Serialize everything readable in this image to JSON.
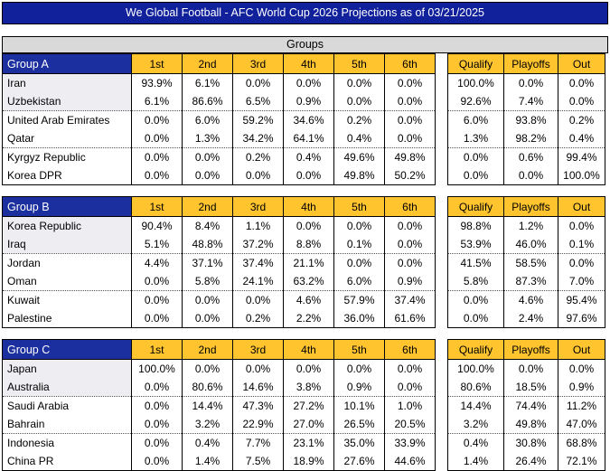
{
  "title": "We Global Football - AFC World Cup 2026 Projections as of 03/21/2025",
  "section_label": "Groups",
  "colors": {
    "title_bar_blue": "#11209B",
    "group_header_blue": "#1B2F9E",
    "header_gold": "#FFC42E",
    "band_gray": "#D9D9D9",
    "top2_shade": "#EDEDF2"
  },
  "chart_data": {
    "type": "table",
    "title": "We Global Football - AFC World Cup 2026 Projections as of 03/21/2025",
    "section_label": "Groups",
    "position_headers": [
      "1st",
      "2nd",
      "3rd",
      "4th",
      "5th",
      "6th"
    ],
    "outcome_headers": [
      "Qualify",
      "Playoffs",
      "Out"
    ],
    "groups": [
      {
        "name": "Group A",
        "teams": [
          {
            "team": "Iran",
            "positions": [
              "93.9%",
              "6.1%",
              "0.0%",
              "0.0%",
              "0.0%",
              "0.0%"
            ],
            "outcomes": [
              "100.0%",
              "0.0%",
              "0.0%"
            ]
          },
          {
            "team": "Uzbekistan",
            "positions": [
              "6.1%",
              "86.6%",
              "6.5%",
              "0.9%",
              "0.0%",
              "0.0%"
            ],
            "outcomes": [
              "92.6%",
              "7.4%",
              "0.0%"
            ]
          },
          {
            "team": "United Arab Emirates",
            "positions": [
              "0.0%",
              "6.0%",
              "59.2%",
              "34.6%",
              "0.2%",
              "0.0%"
            ],
            "outcomes": [
              "6.0%",
              "93.8%",
              "0.2%"
            ]
          },
          {
            "team": "Qatar",
            "positions": [
              "0.0%",
              "1.3%",
              "34.2%",
              "64.1%",
              "0.4%",
              "0.0%"
            ],
            "outcomes": [
              "1.3%",
              "98.2%",
              "0.4%"
            ]
          },
          {
            "team": "Kyrgyz Republic",
            "positions": [
              "0.0%",
              "0.0%",
              "0.2%",
              "0.4%",
              "49.6%",
              "49.8%"
            ],
            "outcomes": [
              "0.0%",
              "0.6%",
              "99.4%"
            ]
          },
          {
            "team": "Korea DPR",
            "positions": [
              "0.0%",
              "0.0%",
              "0.0%",
              "0.0%",
              "49.8%",
              "50.2%"
            ],
            "outcomes": [
              "0.0%",
              "0.0%",
              "100.0%"
            ]
          }
        ]
      },
      {
        "name": "Group B",
        "teams": [
          {
            "team": "Korea Republic",
            "positions": [
              "90.4%",
              "8.4%",
              "1.1%",
              "0.0%",
              "0.0%",
              "0.0%"
            ],
            "outcomes": [
              "98.8%",
              "1.2%",
              "0.0%"
            ]
          },
          {
            "team": "Iraq",
            "positions": [
              "5.1%",
              "48.8%",
              "37.2%",
              "8.8%",
              "0.1%",
              "0.0%"
            ],
            "outcomes": [
              "53.9%",
              "46.0%",
              "0.1%"
            ]
          },
          {
            "team": "Jordan",
            "positions": [
              "4.4%",
              "37.1%",
              "37.4%",
              "21.1%",
              "0.0%",
              "0.0%"
            ],
            "outcomes": [
              "41.5%",
              "58.5%",
              "0.0%"
            ]
          },
          {
            "team": "Oman",
            "positions": [
              "0.0%",
              "5.8%",
              "24.1%",
              "63.2%",
              "6.0%",
              "0.9%"
            ],
            "outcomes": [
              "5.8%",
              "87.3%",
              "7.0%"
            ]
          },
          {
            "team": "Kuwait",
            "positions": [
              "0.0%",
              "0.0%",
              "0.0%",
              "4.6%",
              "57.9%",
              "37.4%"
            ],
            "outcomes": [
              "0.0%",
              "4.6%",
              "95.4%"
            ]
          },
          {
            "team": "Palestine",
            "positions": [
              "0.0%",
              "0.0%",
              "0.2%",
              "2.2%",
              "36.0%",
              "61.6%"
            ],
            "outcomes": [
              "0.0%",
              "2.4%",
              "97.6%"
            ]
          }
        ]
      },
      {
        "name": "Group C",
        "teams": [
          {
            "team": "Japan",
            "positions": [
              "100.0%",
              "0.0%",
              "0.0%",
              "0.0%",
              "0.0%",
              "0.0%"
            ],
            "outcomes": [
              "100.0%",
              "0.0%",
              "0.0%"
            ]
          },
          {
            "team": "Australia",
            "positions": [
              "0.0%",
              "80.6%",
              "14.6%",
              "3.8%",
              "0.9%",
              "0.0%"
            ],
            "outcomes": [
              "80.6%",
              "18.5%",
              "0.9%"
            ]
          },
          {
            "team": "Saudi Arabia",
            "positions": [
              "0.0%",
              "14.4%",
              "47.3%",
              "27.2%",
              "10.1%",
              "1.0%"
            ],
            "outcomes": [
              "14.4%",
              "74.4%",
              "11.2%"
            ]
          },
          {
            "team": "Bahrain",
            "positions": [
              "0.0%",
              "3.2%",
              "22.9%",
              "27.0%",
              "26.5%",
              "20.5%"
            ],
            "outcomes": [
              "3.2%",
              "49.8%",
              "47.0%"
            ]
          },
          {
            "team": "Indonesia",
            "positions": [
              "0.0%",
              "0.4%",
              "7.7%",
              "23.1%",
              "35.0%",
              "33.9%"
            ],
            "outcomes": [
              "0.4%",
              "30.8%",
              "68.8%"
            ]
          },
          {
            "team": "China PR",
            "positions": [
              "0.0%",
              "1.4%",
              "7.5%",
              "18.9%",
              "27.6%",
              "44.6%"
            ],
            "outcomes": [
              "1.4%",
              "26.4%",
              "72.1%"
            ]
          }
        ]
      }
    ]
  }
}
